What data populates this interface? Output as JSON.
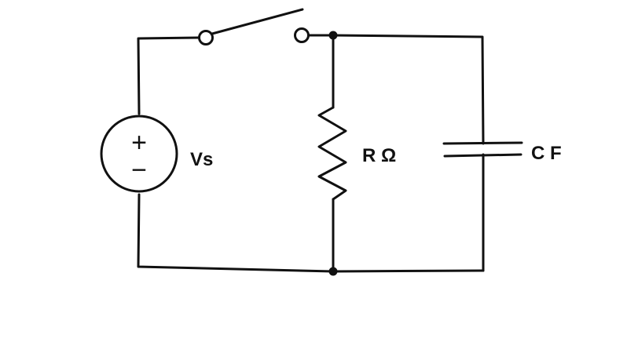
{
  "circuit": {
    "source": {
      "plus_sign": "+",
      "minus_sign": "−",
      "label": "Vs"
    },
    "resistor": {
      "label": "R Ω"
    },
    "capacitor": {
      "label": "C F"
    },
    "switch": {
      "state": "open"
    }
  },
  "colors": {
    "ink": "#111111",
    "background": "#ffffff"
  }
}
